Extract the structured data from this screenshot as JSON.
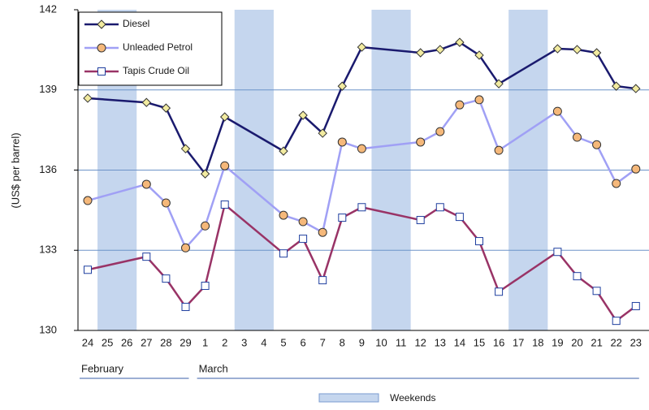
{
  "chart_data": {
    "type": "line",
    "y_label": "(US$ per barrel)",
    "categories": [
      "24",
      "25",
      "26",
      "27",
      "28",
      "29",
      "1",
      "2",
      "3",
      "4",
      "5",
      "6",
      "7",
      "8",
      "9",
      "10",
      "11",
      "12",
      "13",
      "14",
      "15",
      "16",
      "17",
      "18",
      "19",
      "20",
      "21",
      "22",
      "23"
    ],
    "months": [
      {
        "label": "February",
        "from": "24",
        "to": "29"
      },
      {
        "label": "March",
        "from": "1",
        "to": "23"
      }
    ],
    "weekends": [
      [
        "25",
        "26"
      ],
      [
        "3",
        "4"
      ],
      [
        "10",
        "11"
      ],
      [
        "17",
        "18"
      ]
    ],
    "weekend_label": "Weekends",
    "weekend_color": "#c5d6ee",
    "series": [
      {
        "name": "Diesel",
        "color": "#1a1a6e",
        "marker": "diamond",
        "marker_fill": "#f2eba0",
        "values": [
          138.69,
          null,
          null,
          138.53,
          138.32,
          136.8,
          135.86,
          137.99,
          null,
          null,
          136.71,
          138.05,
          137.38,
          139.14,
          140.6,
          null,
          null,
          140.39,
          140.51,
          140.78,
          140.3,
          139.23,
          null,
          null,
          140.54,
          140.51,
          140.39,
          139.14,
          139.05
        ]
      },
      {
        "name": "Unleaded Petrol",
        "color": "#a0a0f5",
        "marker": "circle",
        "marker_fill": "#f5b87a",
        "values": [
          134.86,
          null,
          null,
          135.47,
          134.77,
          133.09,
          133.91,
          136.16,
          null,
          null,
          134.31,
          134.07,
          133.67,
          137.05,
          136.8,
          null,
          null,
          137.05,
          137.44,
          138.44,
          138.63,
          136.74,
          null,
          null,
          138.2,
          137.23,
          136.95,
          135.5,
          136.04
        ]
      },
      {
        "name": "Tapis Crude Oil",
        "color": "#993366",
        "marker": "square",
        "marker_fill": "#ffffff",
        "values": [
          132.27,
          null,
          null,
          132.76,
          131.94,
          130.88,
          131.67,
          134.71,
          null,
          null,
          132.88,
          133.43,
          131.88,
          134.22,
          134.61,
          null,
          null,
          134.13,
          134.61,
          134.25,
          133.34,
          131.45,
          null,
          null,
          132.94,
          132.03,
          131.48,
          130.36,
          130.91
        ]
      }
    ],
    "ylim": [
      130,
      142
    ],
    "yticks": [
      130,
      133,
      136,
      139,
      142
    ],
    "grid": true
  }
}
